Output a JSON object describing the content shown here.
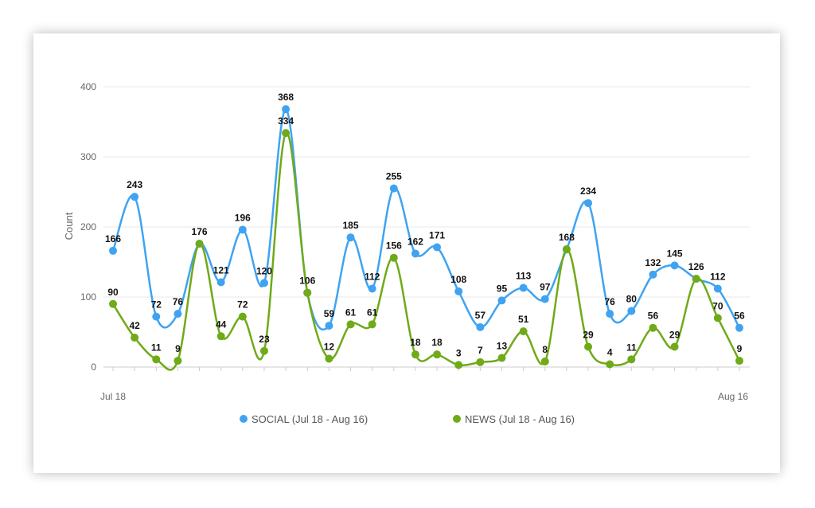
{
  "chart_data": {
    "type": "line",
    "ylabel": "Count",
    "ylim": [
      0,
      400
    ],
    "yticks": [
      0,
      100,
      200,
      300,
      400
    ],
    "x_start_label": "Jul 18",
    "x_end_label": "Aug 16",
    "grid": true,
    "legend_position": "bottom",
    "series": [
      {
        "name": "SOCIAL (Jul 18 - Aug 16)",
        "color": "#3fa3f1",
        "values": [
          166,
          243,
          72,
          76,
          176,
          121,
          196,
          120,
          368,
          106,
          59,
          185,
          112,
          255,
          162,
          171,
          108,
          57,
          95,
          113,
          97,
          168,
          234,
          76,
          80,
          132,
          145,
          126,
          112,
          56
        ]
      },
      {
        "name": "NEWS (Jul 18 - Aug 16)",
        "color": "#6faa18",
        "values": [
          90,
          42,
          11,
          9,
          176,
          44,
          72,
          23,
          334,
          106,
          12,
          61,
          61,
          156,
          18,
          18,
          3,
          7,
          13,
          51,
          8,
          168,
          29,
          4,
          11,
          56,
          29,
          126,
          70,
          9
        ]
      }
    ]
  }
}
